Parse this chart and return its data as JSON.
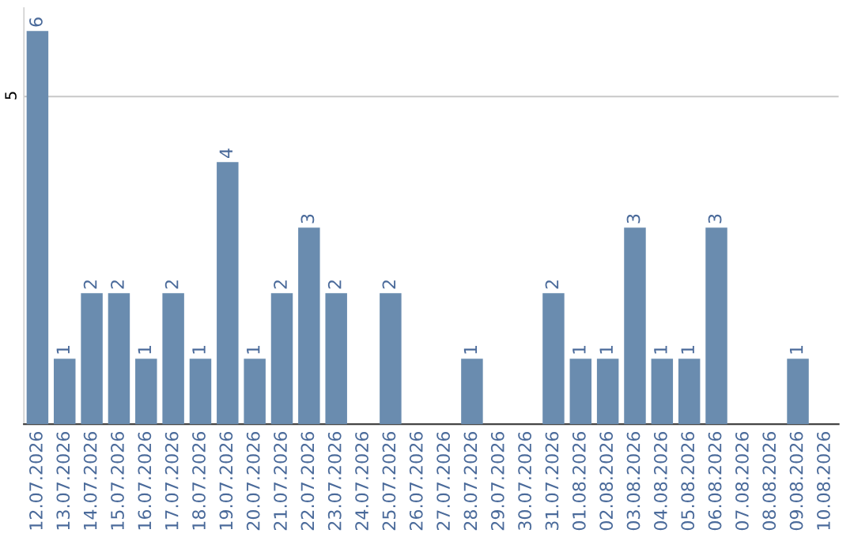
{
  "chart_data": {
    "type": "bar",
    "categories": [
      "12.07.2026",
      "13.07.2026",
      "14.07.2026",
      "15.07.2026",
      "16.07.2026",
      "17.07.2026",
      "18.07.2026",
      "19.07.2026",
      "20.07.2026",
      "21.07.2026",
      "22.07.2026",
      "23.07.2026",
      "24.07.2026",
      "25.07.2026",
      "26.07.2026",
      "27.07.2026",
      "28.07.2026",
      "29.07.2026",
      "30.07.2026",
      "31.07.2026",
      "01.08.2026",
      "02.08.2026",
      "03.08.2026",
      "04.08.2026",
      "05.08.2026",
      "06.08.2026",
      "07.08.2026",
      "08.08.2026",
      "09.08.2026",
      "10.08.2026"
    ],
    "values": [
      6,
      1,
      2,
      2,
      1,
      2,
      1,
      4,
      1,
      2,
      3,
      2,
      0,
      2,
      0,
      0,
      1,
      0,
      0,
      2,
      1,
      1,
      3,
      1,
      1,
      3,
      0,
      0,
      1,
      0
    ],
    "value_labels": [
      "6",
      "1",
      "2",
      "2",
      "1",
      "2",
      "1",
      "4",
      "1",
      "2",
      "3",
      "2",
      null,
      "2",
      null,
      null,
      "1",
      null,
      null,
      "2",
      "1",
      "1",
      "3",
      "1",
      "1",
      "3",
      null,
      null,
      "1",
      null
    ],
    "color": "#6a8caf",
    "ylim": [
      0,
      6.35
    ],
    "yticks": [
      5
    ],
    "grid": "y"
  }
}
